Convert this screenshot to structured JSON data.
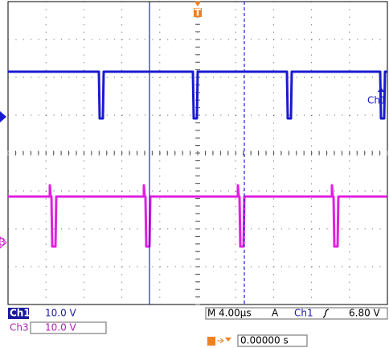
{
  "markers": {
    "trigger": "T",
    "ch3": "3",
    "ch1_label": "Ch1"
  },
  "status": {
    "ch1": "Ch1",
    "ch1_scale": "10.0 V",
    "ch3": "Ch3",
    "ch3_scale": "10.0 V",
    "timebase_prefix": "M",
    "timebase": "4.00µs",
    "trigger_mode": "A",
    "trigger_source": "Ch1",
    "trigger_level": "6.80 V",
    "trigger_position": "0.00000 s"
  }
}
